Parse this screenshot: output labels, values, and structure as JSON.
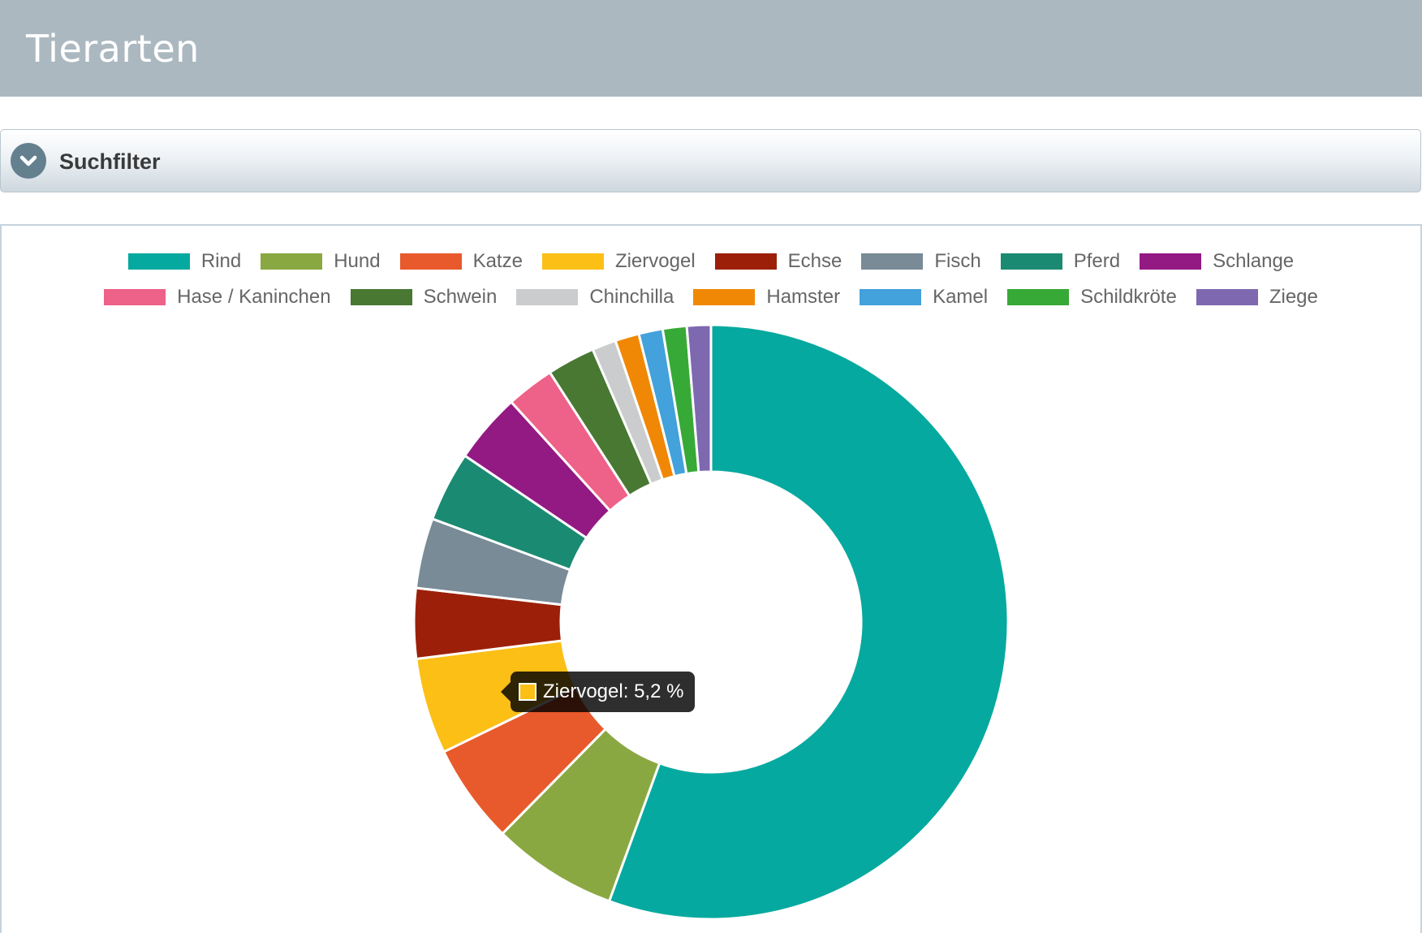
{
  "header": {
    "title": "Tierarten"
  },
  "filter": {
    "label": "Suchfilter"
  },
  "tooltip": {
    "label": "Ziervogel",
    "value_text": "5,2 %",
    "color": "#fbbf16"
  },
  "chart_data": {
    "type": "pie",
    "legend_position": "top",
    "unit": "%",
    "categories": [
      "Rind",
      "Hund",
      "Katze",
      "Ziervogel",
      "Echse",
      "Fisch",
      "Pferd",
      "Schlange",
      "Hase / Kaninchen",
      "Schwein",
      "Chinchilla",
      "Hamster",
      "Kamel",
      "Schildkröte",
      "Ziege"
    ],
    "values": [
      55.4,
      6.8,
      5.4,
      5.2,
      3.8,
      3.8,
      3.8,
      3.8,
      2.6,
      2.6,
      1.3,
      1.3,
      1.3,
      1.3,
      1.3
    ],
    "colors": [
      "#06a99f",
      "#8aa841",
      "#e85a2b",
      "#fbbf16",
      "#9c2009",
      "#788b97",
      "#1b8a72",
      "#931983",
      "#ee6188",
      "#487832",
      "#cbccce",
      "#f08805",
      "#43a1db",
      "#37a937",
      "#7e68b0"
    ]
  }
}
